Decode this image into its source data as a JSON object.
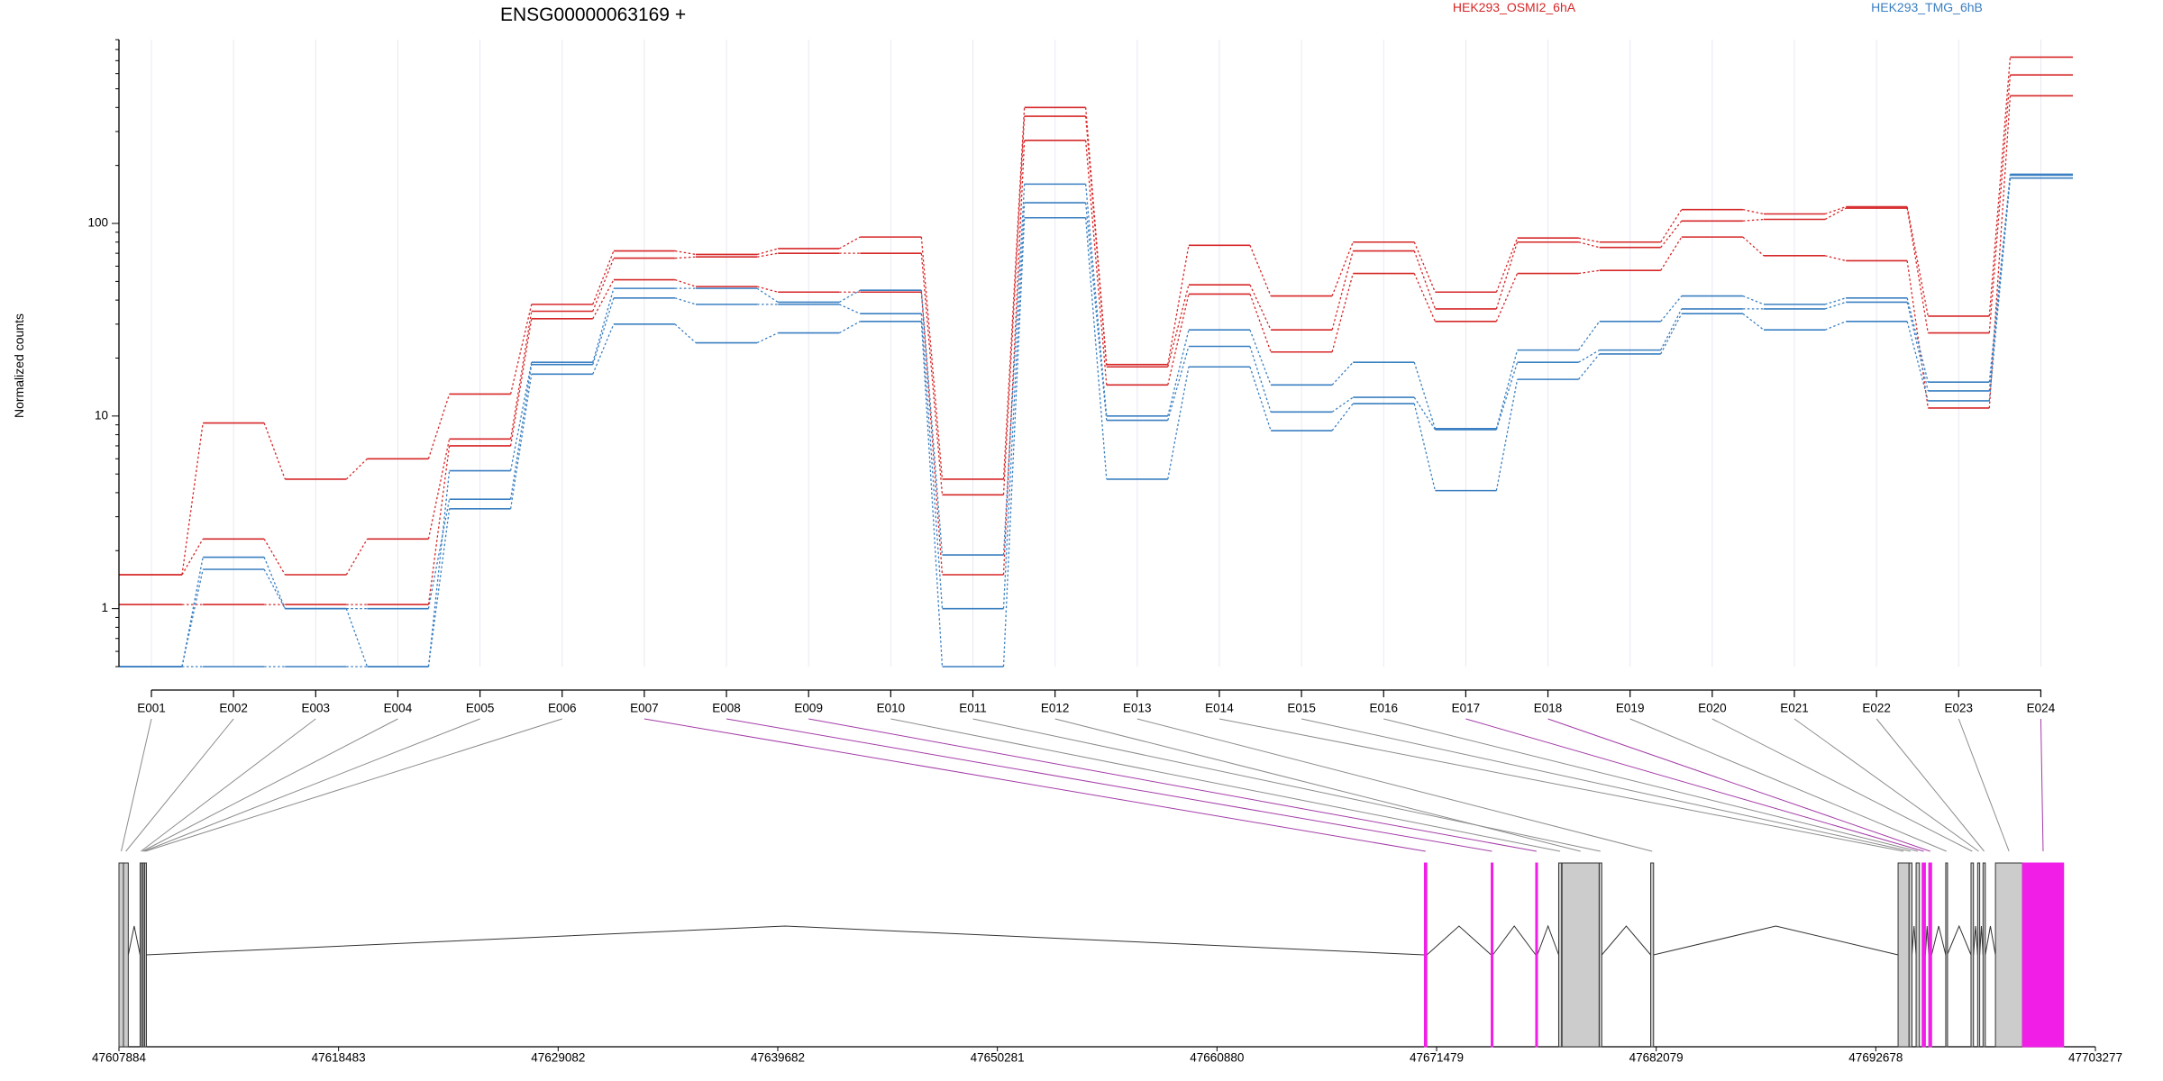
{
  "colors": {
    "condition_a": "#d62728",
    "condition_b": "#3a7fc1",
    "exon_default": "#cccccc",
    "exon_highlight": "#f01ee6",
    "connector_default": "#8c8c8c",
    "connector_highlight": "#a43ca8",
    "grid": "#e8e8f4"
  },
  "chart_data": {
    "type": "line",
    "title": "ENSG00000063169 +",
    "ylabel": "Normalized counts",
    "xlabel": "",
    "y_scale": "log",
    "ylim": [
      0.5,
      900
    ],
    "yticks": [
      1,
      10,
      100
    ],
    "yticklabels": [
      "1",
      "10",
      "100"
    ],
    "grid": true,
    "legend_placement": "top",
    "categories": [
      "E001",
      "E002",
      "E003",
      "E004",
      "E005",
      "E006",
      "E007",
      "E008",
      "E009",
      "E010",
      "E011",
      "E012",
      "E013",
      "E014",
      "E015",
      "E016",
      "E017",
      "E018",
      "E019",
      "E020",
      "E021",
      "E022",
      "E023",
      "E024"
    ],
    "legend": [
      {
        "label": "HEK293_OSMI2_6hA",
        "color_key": "condition_a"
      },
      {
        "label": "HEK293_TMG_6hB",
        "color_key": "condition_b"
      }
    ],
    "series": [
      {
        "color_key": "condition_a",
        "values": [
          1.5,
          9.2,
          4.7,
          6.0,
          13.0,
          38,
          72,
          69,
          74,
          85,
          4.7,
          400,
          18.5,
          77,
          42,
          80,
          44,
          84,
          80,
          118,
          112,
          122,
          33,
          730
        ]
      },
      {
        "color_key": "condition_a",
        "values": [
          1.5,
          2.3,
          1.5,
          2.3,
          7.6,
          35,
          66,
          67,
          70,
          70,
          3.9,
          360,
          18.0,
          48,
          28,
          72,
          36,
          80,
          75,
          103,
          105,
          120,
          27,
          590
        ]
      },
      {
        "color_key": "condition_a",
        "values": [
          1.05,
          1.05,
          1.05,
          1.05,
          7.0,
          32,
          51,
          47,
          44,
          44,
          1.5,
          270,
          14.5,
          43,
          21.5,
          55,
          31,
          55,
          57,
          85,
          68,
          64,
          11.0,
          460
        ]
      },
      {
        "color_key": "condition_b",
        "values": [
          0.5,
          1.85,
          1.0,
          0.5,
          5.2,
          19,
          46,
          46,
          39,
          45,
          1.9,
          160,
          10.0,
          28,
          14.5,
          19,
          8.6,
          22,
          31,
          42,
          38,
          41,
          15.0,
          180
        ]
      },
      {
        "color_key": "condition_b",
        "values": [
          0.5,
          1.6,
          1.0,
          1.0,
          3.7,
          18.5,
          41,
          38,
          38,
          34,
          1.0,
          128,
          9.5,
          23,
          10.5,
          12.5,
          8.5,
          19,
          22,
          36,
          36,
          39,
          13.5,
          178
        ]
      },
      {
        "color_key": "condition_b",
        "values": [
          0.5,
          0.5,
          0.5,
          0.5,
          3.3,
          16.5,
          30,
          24,
          27,
          31,
          0.5,
          107,
          4.7,
          18,
          8.4,
          11.6,
          4.1,
          15.5,
          21,
          34,
          28,
          31,
          12.0,
          172
        ]
      }
    ],
    "gene_model": {
      "genomic_ticks": [
        "47607884",
        "47618483",
        "47629082",
        "47639682",
        "47650281",
        "47660880",
        "47671479",
        "47682079",
        "47692678",
        "47703277"
      ],
      "highlighted_exons": [
        "E007",
        "E008",
        "E009",
        "E017",
        "E018",
        "E024"
      ]
    }
  }
}
